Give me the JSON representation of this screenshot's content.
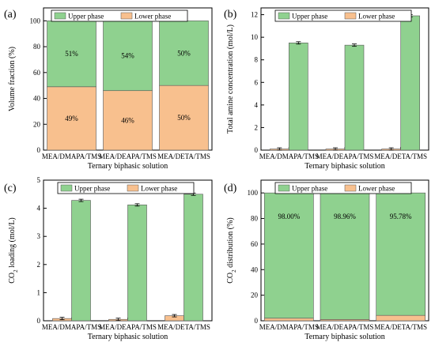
{
  "colors": {
    "upper": "#8fd18f",
    "lower": "#f8c08e",
    "axis": "#000000"
  },
  "chart_data": [
    {
      "panel_label": "(a)",
      "type": "bar",
      "stacked": true,
      "categories": [
        "MEA/DMAPA/TMS",
        "MEA/DEAPA/TMS",
        "MEA/DETA/TMS"
      ],
      "xlabel": "Ternary biphasic solution",
      "ylabel": "Volume fraction (%)",
      "ylim": [
        0,
        110
      ],
      "yticks": [
        "0",
        "20",
        "40",
        "60",
        "80",
        "100"
      ],
      "legend": [
        "Upper phase",
        "Lower phase"
      ],
      "legend_position": "top",
      "series": [
        {
          "name": "Lower phase",
          "values": [
            49,
            46,
            50
          ],
          "labels": [
            "49%",
            "46%",
            "50%"
          ]
        },
        {
          "name": "Upper phase",
          "values": [
            51,
            54,
            50
          ],
          "labels": [
            "51%",
            "54%",
            "50%"
          ]
        }
      ]
    },
    {
      "panel_label": "(b)",
      "type": "bar",
      "grouped": true,
      "categories": [
        "MEA/DMAPA/TMS",
        "MEA/DEAPA/TMS",
        "MEA/DETA/TMS"
      ],
      "xlabel": "Ternary biphasic solution",
      "ylabel": "Total amine concentration (mol/L)",
      "ylim": [
        0,
        12.6
      ],
      "yticks": [
        "0",
        "2",
        "4",
        "6",
        "8",
        "10",
        "12"
      ],
      "legend": [
        "Upper phase",
        "Lower phase"
      ],
      "legend_position": "top-right",
      "series": [
        {
          "name": "Lower phase",
          "values": [
            0.1,
            0.1,
            0.1
          ]
        },
        {
          "name": "Upper phase",
          "values": [
            9.5,
            9.3,
            11.9
          ]
        }
      ]
    },
    {
      "panel_label": "(c)",
      "type": "bar",
      "grouped": true,
      "categories": [
        "MEA/DMAPA/TMS",
        "MEA/DEAPA/TMS",
        "MEA/DETA/TMS"
      ],
      "xlabel": "Ternary biphasic solution",
      "ylabel_main": "CO",
      "ylabel_sub": "2",
      "ylabel_tail": " loading (mol/L)",
      "ylim": [
        0,
        5
      ],
      "yticks": [
        "0",
        "1",
        "2",
        "3",
        "4",
        "5"
      ],
      "legend": [
        "Upper phase",
        "Lower phase"
      ],
      "legend_position": "top-right",
      "series": [
        {
          "name": "Lower phase",
          "values": [
            0.08,
            0.05,
            0.18
          ]
        },
        {
          "name": "Upper phase",
          "values": [
            4.28,
            4.12,
            4.5
          ]
        }
      ]
    },
    {
      "panel_label": "(d)",
      "type": "bar",
      "stacked": true,
      "categories": [
        "MEA/DMAPA/TMS",
        "MEA/DEAPA/TMS",
        "MEA/DETA/TMS"
      ],
      "xlabel": "Ternary biphasic solution",
      "ylabel_main": "CO",
      "ylabel_sub": "2",
      "ylabel_tail": " distribution (%)",
      "ylim": [
        0,
        110
      ],
      "yticks": [
        "0",
        "20",
        "40",
        "60",
        "80",
        "100"
      ],
      "legend": [
        "Upper phase",
        "Lower phase"
      ],
      "legend_position": "top-right",
      "series": [
        {
          "name": "Lower phase",
          "values": [
            2.0,
            1.04,
            4.22
          ]
        },
        {
          "name": "Upper phase",
          "values": [
            98.0,
            98.96,
            95.78
          ],
          "labels": [
            "98.00%",
            "98.96%",
            "95.78%"
          ]
        }
      ]
    }
  ]
}
